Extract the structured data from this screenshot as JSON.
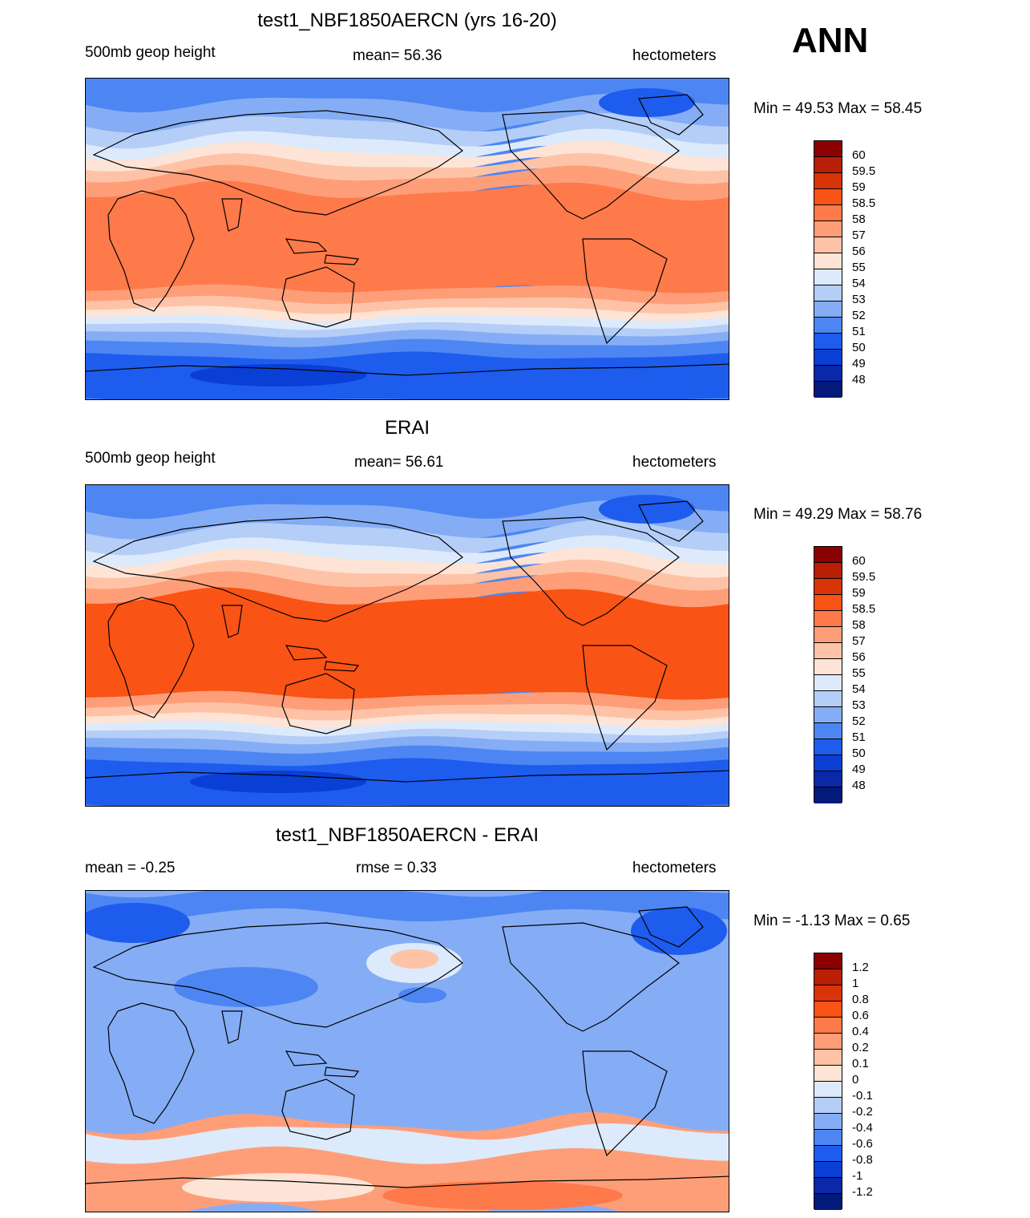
{
  "season": "ANN",
  "panels": [
    {
      "title": "test1_NBF1850AERCN (yrs 16-20)",
      "left": "500mb geop height",
      "center": "mean=  56.36",
      "right": "hectometers",
      "minmax": "Min =  49.53 Max =  58.45",
      "variant": "model",
      "colorbar": {
        "labels": [
          "60",
          "59.5",
          "59",
          "58.5",
          "58",
          "57",
          "56",
          "55",
          "54",
          "53",
          "52",
          "51",
          "50",
          "49",
          "48"
        ],
        "colors": [
          "#8b0000",
          "#b81f05",
          "#d93407",
          "#f95315",
          "#fe7a4a",
          "#fe9e78",
          "#fec3a6",
          "#fde4d6",
          "#dceafb",
          "#b5cef8",
          "#85adf5",
          "#4d86f2",
          "#1e5cee",
          "#0a3fd6",
          "#0a28a8",
          "#031a7a"
        ]
      }
    },
    {
      "title": "ERAI",
      "left": "500mb geop height",
      "center": "mean=  56.61",
      "right": "hectometers",
      "minmax": "Min =  49.29 Max =  58.76",
      "variant": "obs",
      "colorbar": {
        "labels": [
          "60",
          "59.5",
          "59",
          "58.5",
          "58",
          "57",
          "56",
          "55",
          "54",
          "53",
          "52",
          "51",
          "50",
          "49",
          "48"
        ],
        "colors": [
          "#8b0000",
          "#b81f05",
          "#d93407",
          "#f95315",
          "#fe7a4a",
          "#fe9e78",
          "#fec3a6",
          "#fde4d6",
          "#dceafb",
          "#b5cef8",
          "#85adf5",
          "#4d86f2",
          "#1e5cee",
          "#0a3fd6",
          "#0a28a8",
          "#031a7a"
        ]
      }
    },
    {
      "title": "test1_NBF1850AERCN - ERAI",
      "left": "mean =  -0.25",
      "center": "rmse =   0.33",
      "right": "hectometers",
      "minmax": "Min =  -1.13 Max =   0.65",
      "variant": "diff",
      "colorbar": {
        "labels": [
          "1.2",
          "1",
          "0.8",
          "0.6",
          "0.4",
          "0.2",
          "0.1",
          "0",
          "-0.1",
          "-0.2",
          "-0.4",
          "-0.6",
          "-0.8",
          "-1",
          "-1.2"
        ],
        "colors": [
          "#8b0000",
          "#b81f05",
          "#d93407",
          "#f95315",
          "#fe7a4a",
          "#fe9e78",
          "#fec3a6",
          "#fde4d6",
          "#dceafb",
          "#b5cef8",
          "#85adf5",
          "#4d86f2",
          "#1e5cee",
          "#0a3fd6",
          "#0a28a8",
          "#031a7a"
        ]
      }
    }
  ]
}
